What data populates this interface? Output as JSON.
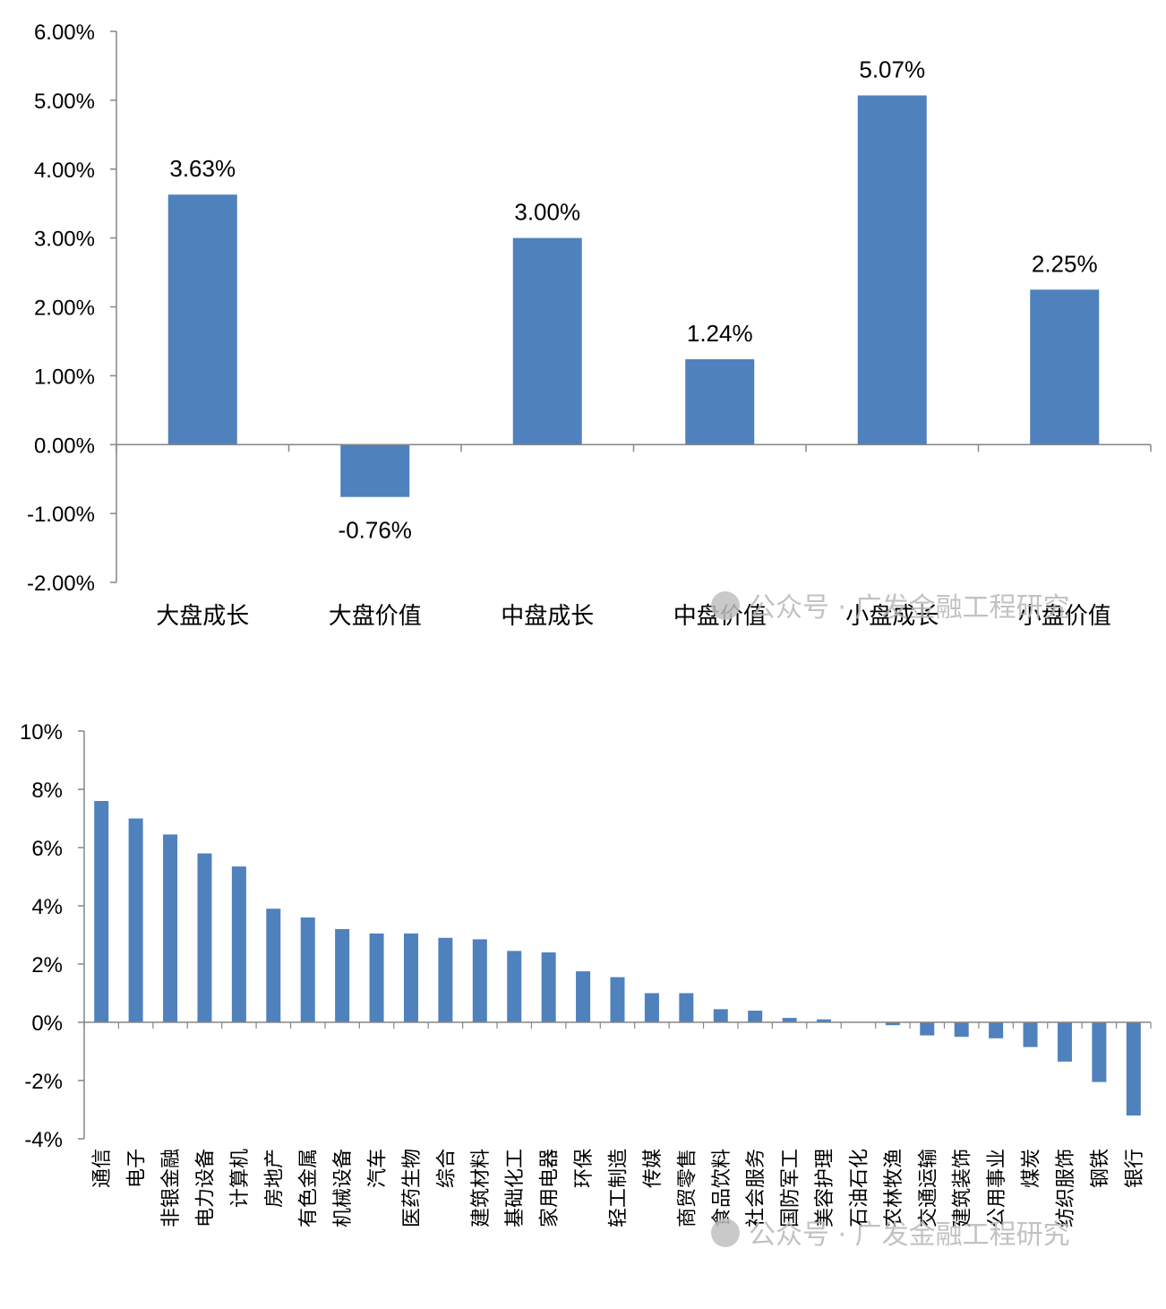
{
  "watermark": "公众号 · 广发金融工程研究",
  "chart_data": [
    {
      "type": "bar",
      "categories": [
        "大盘成长",
        "大盘价值",
        "中盘成长",
        "中盘价值",
        "小盘成长",
        "小盘价值"
      ],
      "values": [
        3.63,
        -0.76,
        3.0,
        1.24,
        5.07,
        2.25
      ],
      "data_labels": [
        "3.63%",
        "-0.76%",
        "3.00%",
        "1.24%",
        "5.07%",
        "2.25%"
      ],
      "ylim": [
        -2,
        6
      ],
      "yticks": [
        "-2.00%",
        "-1.00%",
        "0.00%",
        "1.00%",
        "2.00%",
        "3.00%",
        "4.00%",
        "5.00%",
        "6.00%"
      ],
      "bar_color": "#4f81bd",
      "grid": false
    },
    {
      "type": "bar",
      "categories": [
        "通信",
        "电子",
        "非银金融",
        "电力设备",
        "计算机",
        "房地产",
        "有色金属",
        "机械设备",
        "汽车",
        "医药生物",
        "综合",
        "建筑材料",
        "基础化工",
        "家用电器",
        "环保",
        "轻工制造",
        "传媒",
        "商贸零售",
        "食品饮料",
        "社会服务",
        "国防军工",
        "美容护理",
        "石油石化",
        "农林牧渔",
        "交通运输",
        "建筑装饰",
        "公用事业",
        "煤炭",
        "纺织服饰",
        "钢铁",
        "银行"
      ],
      "values": [
        7.6,
        7.0,
        6.45,
        5.8,
        5.35,
        3.9,
        3.6,
        3.2,
        3.05,
        3.05,
        2.9,
        2.85,
        2.45,
        2.4,
        1.75,
        1.55,
        1.0,
        1.0,
        0.45,
        0.4,
        0.15,
        0.1,
        0.0,
        -0.1,
        -0.45,
        -0.5,
        -0.55,
        -0.85,
        -1.35,
        -2.05,
        -3.2
      ],
      "ylim": [
        -4,
        10
      ],
      "yticks": [
        "-4%",
        "-2%",
        "0%",
        "2%",
        "4%",
        "6%",
        "8%",
        "10%"
      ],
      "bar_color": "#4f81bd",
      "grid": false
    }
  ]
}
